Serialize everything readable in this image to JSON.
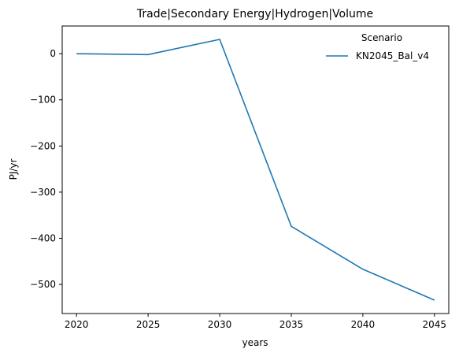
{
  "chart_data": {
    "type": "line",
    "title": "Trade|Secondary Energy|Hydrogen|Volume",
    "xlabel": "years",
    "ylabel": "PJ/yr",
    "x": [
      2020,
      2025,
      2030,
      2035,
      2040,
      2045
    ],
    "xticks": [
      "2020",
      "2025",
      "2030",
      "2035",
      "2040",
      "2045"
    ],
    "yticks": [
      "0",
      "−100",
      "−200",
      "−300",
      "−400",
      "−500"
    ],
    "ytick_values": [
      0,
      -100,
      -200,
      -300,
      -400,
      -500
    ],
    "xlim": [
      2019,
      2046
    ],
    "ylim": [
      -563,
      60
    ],
    "grid": false,
    "legend": {
      "title": "Scenario",
      "placement": "top-right"
    },
    "series": [
      {
        "name": "KN2045_Bal_v4",
        "color": "#1f77b4",
        "values": [
          0,
          -2,
          31,
          -374,
          -467,
          -534
        ]
      }
    ]
  }
}
